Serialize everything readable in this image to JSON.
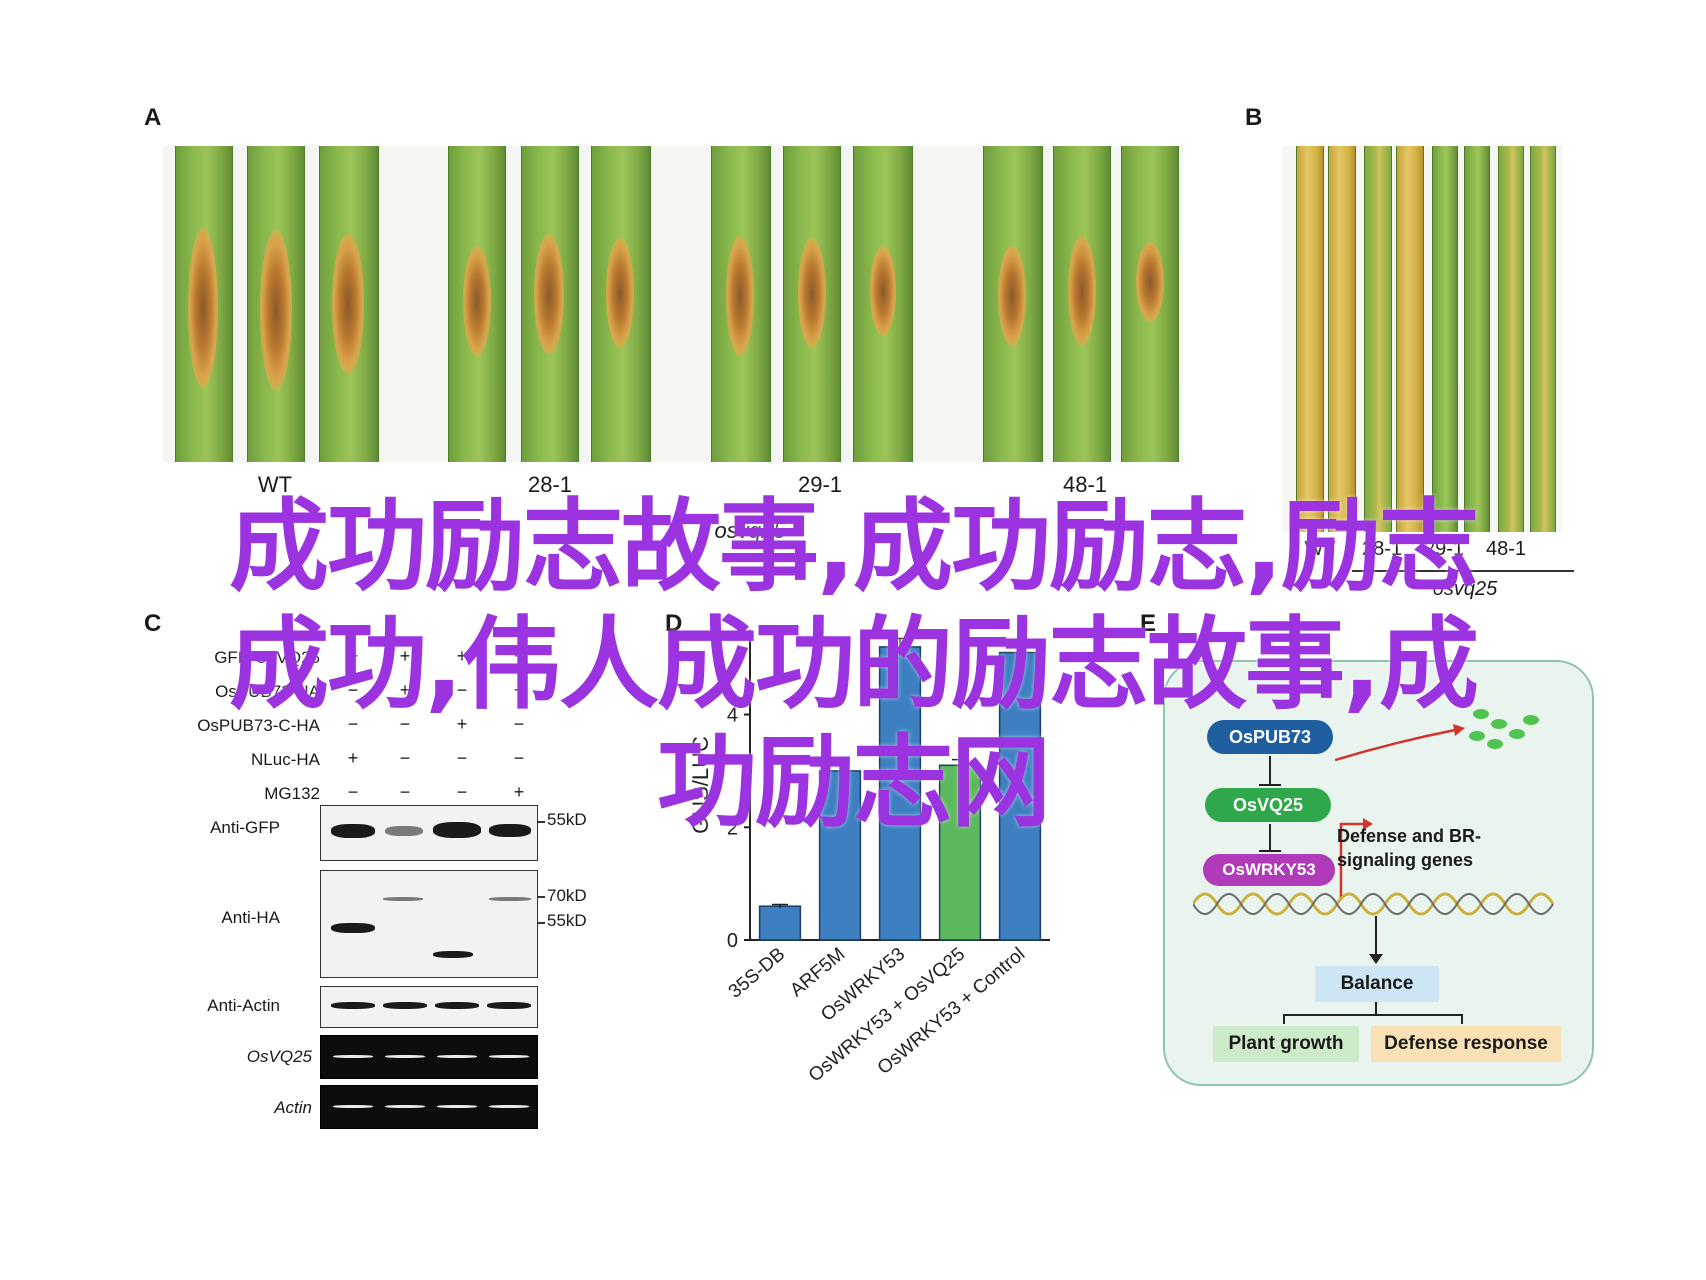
{
  "panels": {
    "a": "A",
    "b": "B",
    "c": "C",
    "d": "D",
    "e": "E"
  },
  "panel_a": {
    "genotypes": [
      "WT",
      "28-1",
      "29-1",
      "48-1"
    ]
  },
  "panel_b": {
    "genotypes": [
      "WT",
      "28-1",
      "29-1",
      "48-1"
    ],
    "group_label": "osvq25"
  },
  "panel_a_group_label": "osvq25",
  "western_blot": {
    "conditions": [
      {
        "label": "GFP-OsVQ25",
        "signs": [
          "+",
          "+",
          "+",
          "+"
        ]
      },
      {
        "label": "OsPUB73-HA",
        "signs": [
          "−",
          "+",
          "−",
          "+"
        ]
      },
      {
        "label": "OsPUB73-C-HA",
        "signs": [
          "−",
          "−",
          "+",
          "−"
        ]
      },
      {
        "label": "NLuc-HA",
        "signs": [
          "+",
          "−",
          "−",
          "−"
        ]
      },
      {
        "label": "MG132",
        "signs": [
          "−",
          "−",
          "−",
          "+"
        ]
      }
    ],
    "blots": {
      "anti_gfp": "Anti-GFP",
      "anti_ha": "Anti-HA",
      "anti_actin": "Anti-Actin",
      "osvq25": "OsVQ25",
      "actin": "Actin"
    },
    "markers": {
      "kd55": "55kD",
      "kd70": "70kD",
      "kd55b": "55kD"
    }
  },
  "chart_data": {
    "type": "bar",
    "categories": [
      "35S-DB",
      "ARF5M",
      "OsWRKY53",
      "OsWRKY53 + OsVQ25",
      "OsWRKY53 + Control"
    ],
    "values": [
      0.6,
      3.0,
      5.2,
      3.1,
      5.1
    ],
    "errors": [
      0.03,
      0.1,
      0.15,
      0.1,
      0.15
    ],
    "bar_colors": [
      "#3d7fc1",
      "#3d7fc1",
      "#3d7fc1",
      "#5cb85c",
      "#3d7fc1"
    ],
    "ylabel": "GUS/LUC",
    "yticks": [
      0,
      2,
      4
    ],
    "ylim": [
      0,
      5.5
    ]
  },
  "pathway": {
    "pub73": "OsPUB73",
    "vq25": "OsVQ25",
    "wrky53": "OsWRKY53",
    "genes_line1": "Defense and BR-",
    "genes_line2": "signaling genes",
    "balance": "Balance",
    "plant_growth": "Plant growth",
    "defense_response": "Defense response",
    "colors": {
      "pub73": "#1f5fa0",
      "vq25": "#2ea84a",
      "wrky53": "#b03bb8"
    }
  },
  "overlay": {
    "line1": "成功励志故事,成功励志,励志",
    "line2": "成功,伟人成功的励志故事,成",
    "line3": "功励志网"
  }
}
